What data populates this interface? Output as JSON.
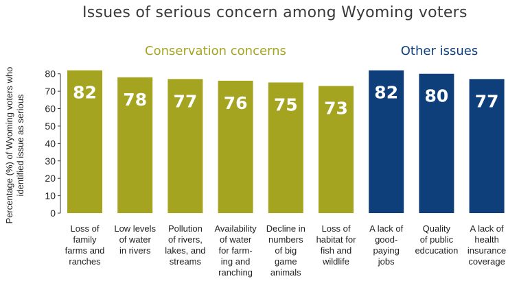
{
  "chart_data": {
    "type": "bar",
    "title": "Issues of serious concern among Wyoming voters",
    "ylabel": "Percentage (%) of Wyoming voters who identified issue as serious",
    "ylim": [
      0,
      85
    ],
    "yticks": [
      0,
      10,
      20,
      30,
      40,
      50,
      60,
      70,
      80
    ],
    "groups": [
      {
        "name": "Conservation concerns",
        "color": "#a5a421",
        "count": 6
      },
      {
        "name": "Other issues",
        "color": "#0e3f7a",
        "count": 3
      }
    ],
    "categories": [
      "Loss of family farms and ranches",
      "Low levels of water in rivers",
      "Pollution of rivers, lakes, and streams",
      "Availability of water for farming and ranching",
      "Decline in numbers of big game animals",
      "Loss of habitat for fish and wildlife",
      "A lack of good-paying jobs",
      "Quality of public edcucation",
      "A lack of health insurance coverage"
    ],
    "category_lines": [
      [
        "Loss of",
        "family",
        "farms and",
        "ranches"
      ],
      [
        "Low levels",
        "of water",
        "in rivers"
      ],
      [
        "Pollution",
        "of rivers,",
        "lakes, and",
        "streams"
      ],
      [
        "Availability",
        "of water",
        "for farm-",
        "ing and",
        "ranching"
      ],
      [
        "Decline in",
        "numbers",
        "of big",
        "game",
        "animals"
      ],
      [
        "Loss of",
        "habitat for",
        "fish and",
        "wildlife"
      ],
      [
        "A lack of",
        "good-",
        "paying",
        "jobs"
      ],
      [
        "Quality",
        "of public",
        "edcucation"
      ],
      [
        "A lack of",
        "health",
        "insurance",
        "coverage"
      ]
    ],
    "series": [
      {
        "values": [
          82,
          78,
          77,
          76,
          75,
          73,
          82,
          80,
          77
        ]
      }
    ]
  }
}
